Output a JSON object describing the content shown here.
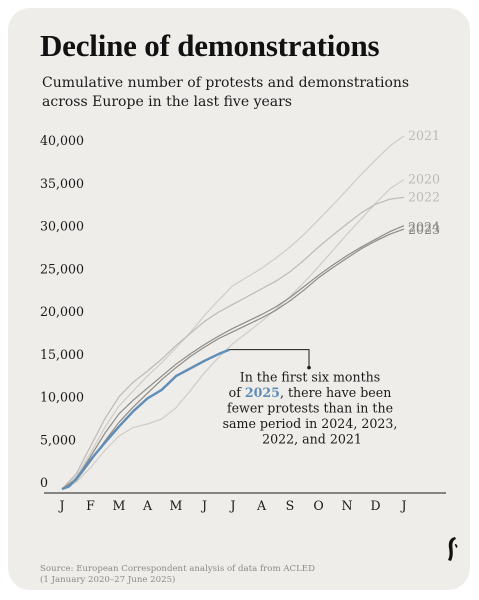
{
  "header": {
    "title": "Decline of demonstrations",
    "subtitle": "Cumulative number of protests and demonstrations across Europe in the last five years"
  },
  "annotation": {
    "line1": "In the first six months",
    "line2_prefix": "of ",
    "line2_highlight": "2025",
    "line2_suffix": ", there have been",
    "line3": "fewer protests than in the",
    "line4": "same period in 2024, 2023,",
    "line5": "2022, and 2021"
  },
  "source": {
    "line1": "Source: European Correspondent analysis of data from ACLED",
    "line2": "(1 January 2020–27 June 2025)"
  },
  "logo": {
    "icon": "publication-logo-icon"
  },
  "colors": {
    "background": "#efedea",
    "highlight": "#5f8db8",
    "gray_lines": "#bdbab5",
    "dark_lines": "#8f8c87",
    "axis_text": "#1a1a1a",
    "end_labels": "#9e9b96"
  },
  "chart_data": {
    "type": "line",
    "x_axis": "month",
    "x_tick_labels": [
      "J",
      "F",
      "M",
      "A",
      "M",
      "J",
      "J",
      "A",
      "S",
      "O",
      "N",
      "D",
      "J"
    ],
    "xlim": [
      0,
      12
    ],
    "y_tick_labels": [
      "0",
      "5,000",
      "10,000",
      "15,000",
      "20,000",
      "25,000",
      "30,000",
      "35,000",
      "40,000"
    ],
    "ylim": [
      0,
      40000
    ],
    "grid": false,
    "series": [
      {
        "name": "2021",
        "color": "#cfccc7",
        "x": [
          0,
          0.5,
          1,
          1.5,
          2,
          2.5,
          3,
          3.5,
          4,
          4.5,
          5,
          5.5,
          6,
          6.5,
          7,
          7.5,
          8,
          8.5,
          9,
          9.5,
          10,
          10.5,
          11,
          11.5,
          12
        ],
        "y": [
          0,
          1500,
          4200,
          7200,
          9700,
          11500,
          13200,
          14800,
          16500,
          18300,
          20300,
          22100,
          23800,
          24800,
          25800,
          27000,
          28300,
          29800,
          31500,
          33200,
          35000,
          36800,
          38500,
          40100,
          41300
        ]
      },
      {
        "name": "2020",
        "color": "#cfccc7",
        "x": [
          0,
          0.5,
          1,
          1.5,
          2,
          2.5,
          3,
          3.5,
          4,
          4.5,
          5,
          5.5,
          6,
          6.5,
          7,
          7.5,
          8,
          8.5,
          9,
          9.5,
          10,
          10.5,
          11,
          11.5,
          12
        ],
        "y": [
          0,
          800,
          2500,
          4500,
          6200,
          7200,
          7600,
          8200,
          9500,
          11500,
          13600,
          15400,
          17000,
          18300,
          19600,
          21000,
          22500,
          24200,
          26000,
          27900,
          29800,
          31600,
          33400,
          35100,
          36200
        ]
      },
      {
        "name": "2022",
        "color": "#bdbab5",
        "x": [
          0,
          0.5,
          1,
          1.5,
          2,
          2.5,
          3,
          3.5,
          4,
          4.5,
          5,
          5.5,
          6,
          6.5,
          7,
          7.5,
          8,
          8.5,
          9,
          9.5,
          10,
          10.5,
          11,
          11.5,
          12
        ],
        "y": [
          0,
          1800,
          5000,
          8200,
          10800,
          12500,
          13800,
          15200,
          16800,
          18200,
          19600,
          20700,
          21600,
          22500,
          23400,
          24300,
          25400,
          26800,
          28300,
          29700,
          31000,
          32300,
          33300,
          33900,
          34100
        ]
      },
      {
        "name": "2024",
        "color": "#8f8c87",
        "x": [
          0,
          0.5,
          1,
          1.5,
          2,
          2.5,
          3,
          3.5,
          4,
          4.5,
          5,
          5.5,
          6,
          6.5,
          7,
          7.5,
          8,
          8.5,
          9,
          9.5,
          10,
          10.5,
          11,
          11.5,
          12
        ],
        "y": [
          0,
          1200,
          3800,
          6500,
          8800,
          10400,
          11800,
          13200,
          14600,
          15800,
          16900,
          17900,
          18800,
          19600,
          20400,
          21300,
          22400,
          23700,
          25000,
          26200,
          27300,
          28300,
          29200,
          30100,
          30800
        ]
      },
      {
        "name": "2023",
        "color": "#8f8c87",
        "x": [
          0,
          0.5,
          1,
          1.5,
          2,
          2.5,
          3,
          3.5,
          4,
          4.5,
          5,
          5.5,
          6,
          6.5,
          7,
          7.5,
          8,
          8.5,
          9,
          9.5,
          10,
          10.5,
          11,
          11.5,
          12
        ],
        "y": [
          0,
          1000,
          3200,
          5600,
          7800,
          9600,
          11200,
          12800,
          14200,
          15500,
          16600,
          17600,
          18400,
          19200,
          20000,
          20900,
          22000,
          23300,
          24700,
          25900,
          27000,
          28100,
          29000,
          29800,
          30400
        ]
      },
      {
        "name": "2025",
        "color": "#5f8db8",
        "x": [
          0,
          0.25,
          0.5,
          1,
          1.5,
          2,
          2.5,
          3,
          3.5,
          4,
          4.5,
          5,
          5.5,
          5.88
        ],
        "y": [
          0,
          300,
          1200,
          3400,
          5400,
          7300,
          9100,
          10600,
          11600,
          13200,
          14100,
          15000,
          15800,
          16300
        ]
      }
    ]
  }
}
